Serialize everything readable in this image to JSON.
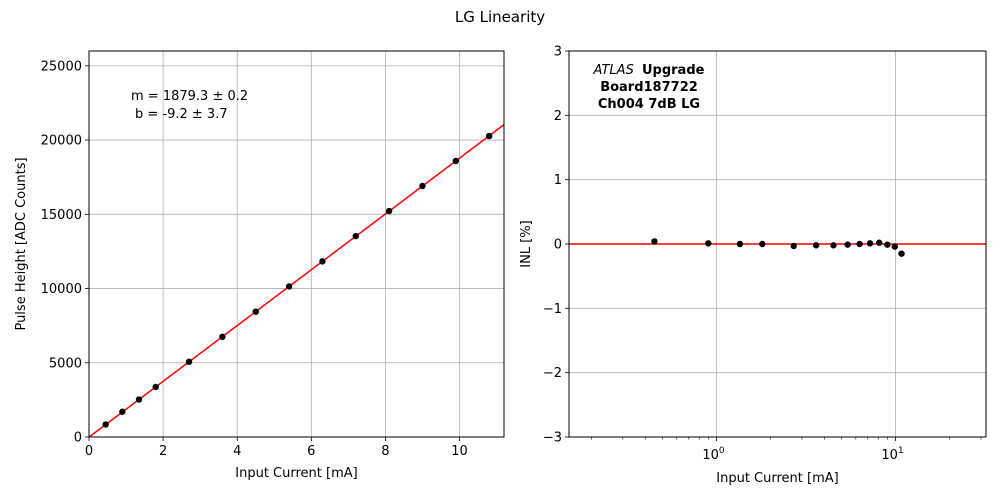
{
  "figure": {
    "title": "LG Linearity"
  },
  "chart_data": [
    {
      "type": "scatter",
      "xlabel": "Input Current [mA]",
      "ylabel": "Pulse Height [ADC Counts]",
      "xlim": [
        0,
        11.2
      ],
      "ylim": [
        0,
        26000
      ],
      "xticks": [
        0,
        2,
        4,
        6,
        8,
        10
      ],
      "xtick_labels": [
        "0",
        "2",
        "4",
        "6",
        "8",
        "10"
      ],
      "yticks": [
        0,
        5000,
        10000,
        15000,
        20000,
        25000
      ],
      "ytick_labels": [
        "0",
        "5000",
        "10000",
        "15000",
        "20000",
        "25000"
      ],
      "grid": true,
      "points": [
        {
          "x": 0.45,
          "y": 840
        },
        {
          "x": 0.9,
          "y": 1700
        },
        {
          "x": 1.35,
          "y": 2530
        },
        {
          "x": 1.8,
          "y": 3370
        },
        {
          "x": 2.7,
          "y": 5070
        },
        {
          "x": 3.6,
          "y": 6750
        },
        {
          "x": 4.5,
          "y": 8440
        },
        {
          "x": 5.4,
          "y": 10140
        },
        {
          "x": 6.3,
          "y": 11830
        },
        {
          "x": 7.2,
          "y": 13530
        },
        {
          "x": 8.1,
          "y": 15220
        },
        {
          "x": 9.0,
          "y": 16910
        },
        {
          "x": 9.9,
          "y": 18590
        },
        {
          "x": 10.8,
          "y": 20270
        }
      ],
      "fit": {
        "slope": 1879.3,
        "intercept": -9.2,
        "color": "#ff0000"
      },
      "point_color": "#000000",
      "annotation": [
        "m = 1879.3 ± 0.2",
        "b = -9.2 ± 3.7"
      ]
    },
    {
      "type": "scatter",
      "xscale": "log",
      "xlabel": "Input Current [mA]",
      "ylabel": "INL [%]",
      "xlim": [
        0.15,
        32
      ],
      "ylim": [
        -3,
        3
      ],
      "yticks": [
        -3,
        -2,
        -1,
        0,
        1,
        2,
        3
      ],
      "ytick_labels": [
        "−3",
        "−2",
        "−1",
        "0",
        "1",
        "2",
        "3"
      ],
      "xticks_major": [
        1,
        10
      ],
      "xtick_bases": [
        "10",
        "10"
      ],
      "xtick_exponents": [
        "0",
        "1"
      ],
      "grid": true,
      "points": [
        {
          "x": 0.45,
          "y": 0.04
        },
        {
          "x": 0.9,
          "y": 0.01
        },
        {
          "x": 1.35,
          "y": 0.0
        },
        {
          "x": 1.8,
          "y": 0.0
        },
        {
          "x": 2.7,
          "y": -0.03
        },
        {
          "x": 3.6,
          "y": -0.02
        },
        {
          "x": 4.5,
          "y": -0.02
        },
        {
          "x": 5.4,
          "y": -0.01
        },
        {
          "x": 6.3,
          "y": 0.0
        },
        {
          "x": 7.2,
          "y": 0.01
        },
        {
          "x": 8.1,
          "y": 0.02
        },
        {
          "x": 9.0,
          "y": -0.01
        },
        {
          "x": 9.9,
          "y": -0.04
        },
        {
          "x": 10.8,
          "y": -0.15
        }
      ],
      "hline": {
        "y": 0,
        "color": "#ff0000"
      },
      "point_color": "#000000",
      "annotation": {
        "italic": "ATLAS",
        "bold": "Upgrade",
        "line2": "Board187722",
        "line3": "Ch004 7dB LG"
      }
    }
  ]
}
